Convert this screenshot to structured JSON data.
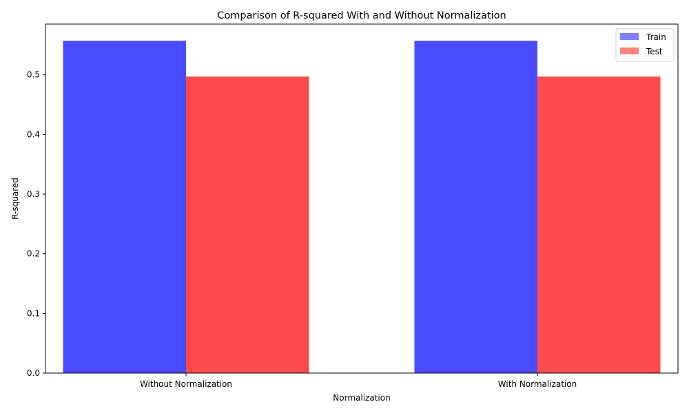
{
  "chart_data": {
    "type": "bar",
    "title": "Comparison of R-squared With and Without Normalization",
    "xlabel": "Normalization",
    "ylabel": "R-squared",
    "categories": [
      "Without Normalization",
      "With Normalization"
    ],
    "series": [
      {
        "name": "Train",
        "values": [
          0.557,
          0.557
        ],
        "color": "#4b4bff"
      },
      {
        "name": "Test",
        "values": [
          0.497,
          0.497
        ],
        "color": "#ff4b4b"
      }
    ],
    "ylim": [
      0,
      0.585
    ],
    "yticks": [
      "0.0",
      "0.1",
      "0.2",
      "0.3",
      "0.4",
      "0.5"
    ],
    "grid": false,
    "legend_position": "top-right"
  }
}
